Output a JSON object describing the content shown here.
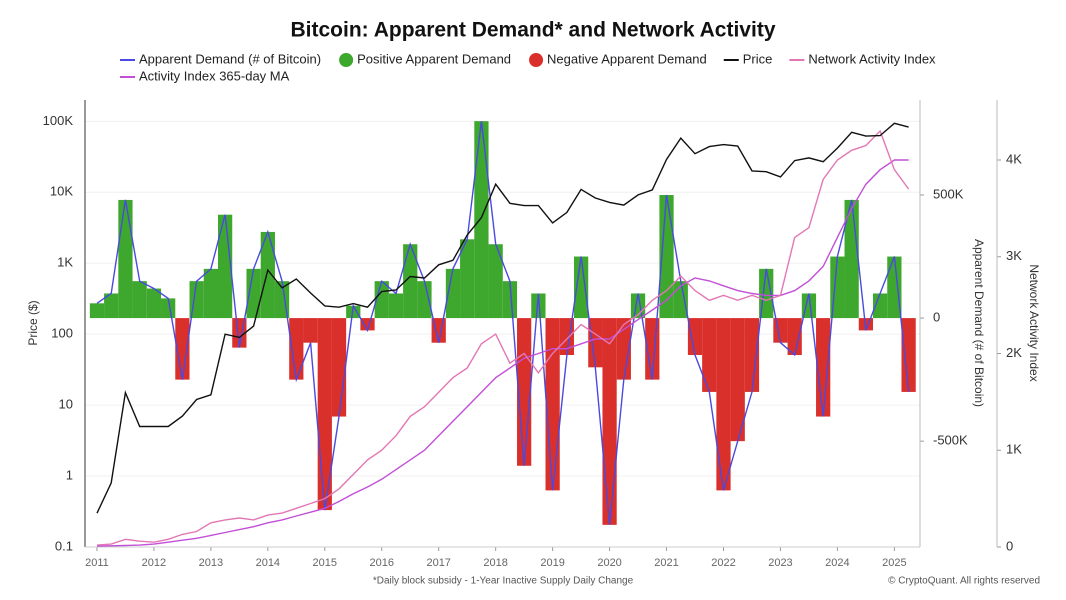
{
  "chart_data": {
    "type": "combo",
    "title": "Bitcoin: Apparent Demand* and Network Activity",
    "footnote": "*Daily block subsidy - 1-Year Inactive Supply Daily Change",
    "credit": "© CryptoQuant. All rights reserved",
    "y_label": "Price ($)",
    "y2_label": "Apparent Demand (# of Bitcoin)",
    "y3_label": "Network Activity Index",
    "ylog": true,
    "grid": true,
    "x": [
      2011,
      2011.25,
      2011.5,
      2011.75,
      2012,
      2012.25,
      2012.5,
      2012.75,
      2013,
      2013.25,
      2013.5,
      2013.75,
      2014,
      2014.25,
      2014.5,
      2014.75,
      2015,
      2015.25,
      2015.5,
      2015.75,
      2016,
      2016.25,
      2016.5,
      2016.75,
      2017,
      2017.25,
      2017.5,
      2017.75,
      2018,
      2018.25,
      2018.5,
      2018.75,
      2019,
      2019.25,
      2019.5,
      2019.75,
      2020,
      2020.25,
      2020.5,
      2020.75,
      2021,
      2021.25,
      2021.5,
      2021.75,
      2022,
      2022.25,
      2022.5,
      2022.75,
      2023,
      2023.25,
      2023.5,
      2023.75,
      2024,
      2024.25,
      2024.5,
      2024.75,
      2025,
      2025.25
    ],
    "xlim": [
      2010.79,
      2025.45
    ],
    "xticks": [
      2011,
      2012,
      2013,
      2014,
      2015,
      2016,
      2017,
      2018,
      2019,
      2020,
      2021,
      2022,
      2023,
      2024,
      2025
    ],
    "ylim": [
      0.1,
      200000
    ],
    "yticks": [
      0.1,
      1,
      10,
      100,
      {
        "value": 1000,
        "label": "1K"
      },
      {
        "value": 10000,
        "label": "10K"
      },
      {
        "value": 100000,
        "label": "100K"
      }
    ],
    "y2lim": [
      -930000,
      886000
    ],
    "y2ticks": [
      {
        "value": -500000,
        "label": "-500K"
      },
      0,
      {
        "value": 500000,
        "label": "500K"
      }
    ],
    "y3lim": [
      0,
      4620
    ],
    "y3ticks": [
      0,
      {
        "value": 1000,
        "label": "1K"
      },
      {
        "value": 2000,
        "label": "2K"
      },
      {
        "value": 3000,
        "label": "3K"
      },
      {
        "value": 4000,
        "label": "4K"
      }
    ],
    "demand_fill": [
      {
        "name": "Positive Apparent Demand",
        "color": "#3ea72d"
      },
      {
        "name": "Negative Apparent Demand",
        "color": "#d9302c"
      }
    ],
    "series": [
      {
        "name": "Apparent Demand (# of Bitcoin)",
        "color": "#4a4ae0",
        "axis": "y2",
        "values": [
          60000,
          100000,
          480000,
          150000,
          120000,
          80000,
          -250000,
          150000,
          200000,
          420000,
          -120000,
          200000,
          350000,
          150000,
          -250000,
          -100000,
          -780000,
          -400000,
          50000,
          -50000,
          150000,
          100000,
          300000,
          150000,
          -100000,
          200000,
          320000,
          800000,
          300000,
          150000,
          -600000,
          100000,
          -700000,
          -150000,
          250000,
          -200000,
          -840000,
          -250000,
          100000,
          -250000,
          500000,
          150000,
          -150000,
          -300000,
          -700000,
          -500000,
          -300000,
          200000,
          -100000,
          -150000,
          100000,
          -400000,
          250000,
          480000,
          -50000,
          100000,
          250000,
          -300000
        ]
      },
      {
        "name": "Price",
        "color": "#111111",
        "axis": "y",
        "values": [
          0.3,
          0.8,
          15,
          5,
          5,
          5,
          7,
          12,
          14,
          100,
          90,
          130,
          800,
          450,
          600,
          380,
          250,
          240,
          270,
          240,
          400,
          420,
          650,
          620,
          950,
          1100,
          2500,
          4400,
          13000,
          7000,
          6500,
          6500,
          3700,
          5200,
          11000,
          8300,
          7200,
          6600,
          9200,
          10800,
          29000,
          58000,
          35000,
          44000,
          47000,
          45000,
          20000,
          19500,
          16500,
          28000,
          30500,
          27000,
          42000,
          70000,
          62000,
          63000,
          94000,
          83000
        ]
      },
      {
        "name": "Network Activity Index",
        "color": "#e377b5",
        "axis": "y3",
        "values": [
          20,
          30,
          80,
          60,
          50,
          80,
          130,
          160,
          250,
          280,
          300,
          280,
          330,
          350,
          400,
          450,
          500,
          600,
          750,
          900,
          1000,
          1150,
          1350,
          1450,
          1600,
          1750,
          1850,
          2100,
          2200,
          1900,
          2000,
          1800,
          2000,
          2150,
          2300,
          2200,
          2100,
          2300,
          2400,
          2550,
          2650,
          2800,
          2650,
          2550,
          2600,
          2550,
          2600,
          2550,
          2600,
          3200,
          3300,
          3800,
          4000,
          4100,
          4150,
          4300,
          3900,
          3700
        ]
      },
      {
        "name": "Activity Index 365-day MA",
        "color": "#c24fd8",
        "axis": "y3",
        "values": [
          10,
          12,
          15,
          20,
          30,
          50,
          70,
          90,
          120,
          150,
          180,
          210,
          250,
          280,
          320,
          360,
          400,
          470,
          550,
          620,
          700,
          800,
          900,
          1000,
          1150,
          1300,
          1450,
          1600,
          1750,
          1850,
          1950,
          2000,
          2050,
          2050,
          2100,
          2150,
          2150,
          2250,
          2350,
          2450,
          2550,
          2700,
          2780,
          2750,
          2700,
          2650,
          2620,
          2600,
          2600,
          2650,
          2750,
          2900,
          3200,
          3500,
          3750,
          3900,
          4000,
          4000
        ]
      }
    ]
  }
}
